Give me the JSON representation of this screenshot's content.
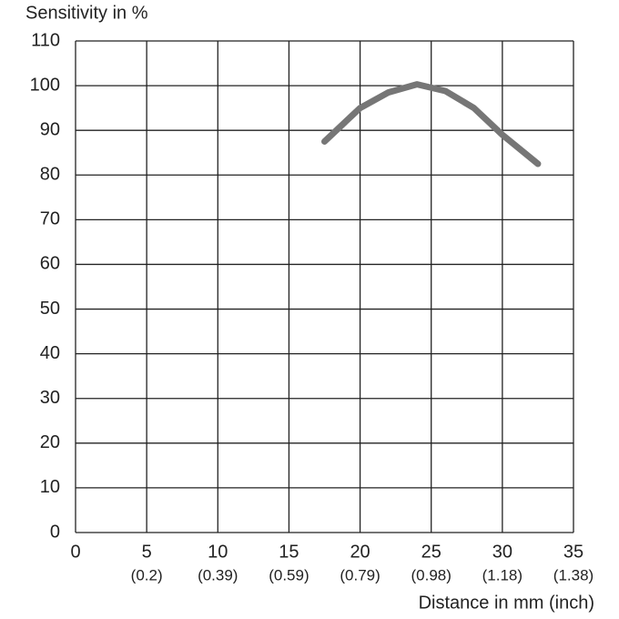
{
  "chart_data": {
    "type": "line",
    "y_axis_title": "Sensitivity in %",
    "x_axis_title": "Distance in mm (inch)",
    "x": [
      17.5,
      20,
      22,
      24,
      26,
      28,
      30,
      32.5
    ],
    "series": [
      {
        "color": "#767676",
        "values": [
          87.5,
          95,
          98.5,
          100.3,
          98.8,
          95,
          89,
          82.5
        ]
      }
    ],
    "xlim": [
      0,
      35
    ],
    "xticks": [
      0,
      5,
      10,
      15,
      20,
      25,
      30,
      35
    ],
    "xtick_inch_labels": [
      null,
      "(0.2)",
      "(0.39)",
      "(0.59)",
      "(0.79)",
      "(0.98)",
      "(1.18)",
      "(1.38)"
    ],
    "ylim": [
      0,
      110
    ],
    "yticks": [
      0,
      10,
      20,
      30,
      40,
      50,
      60,
      70,
      80,
      90,
      100,
      110
    ],
    "grid": true
  }
}
